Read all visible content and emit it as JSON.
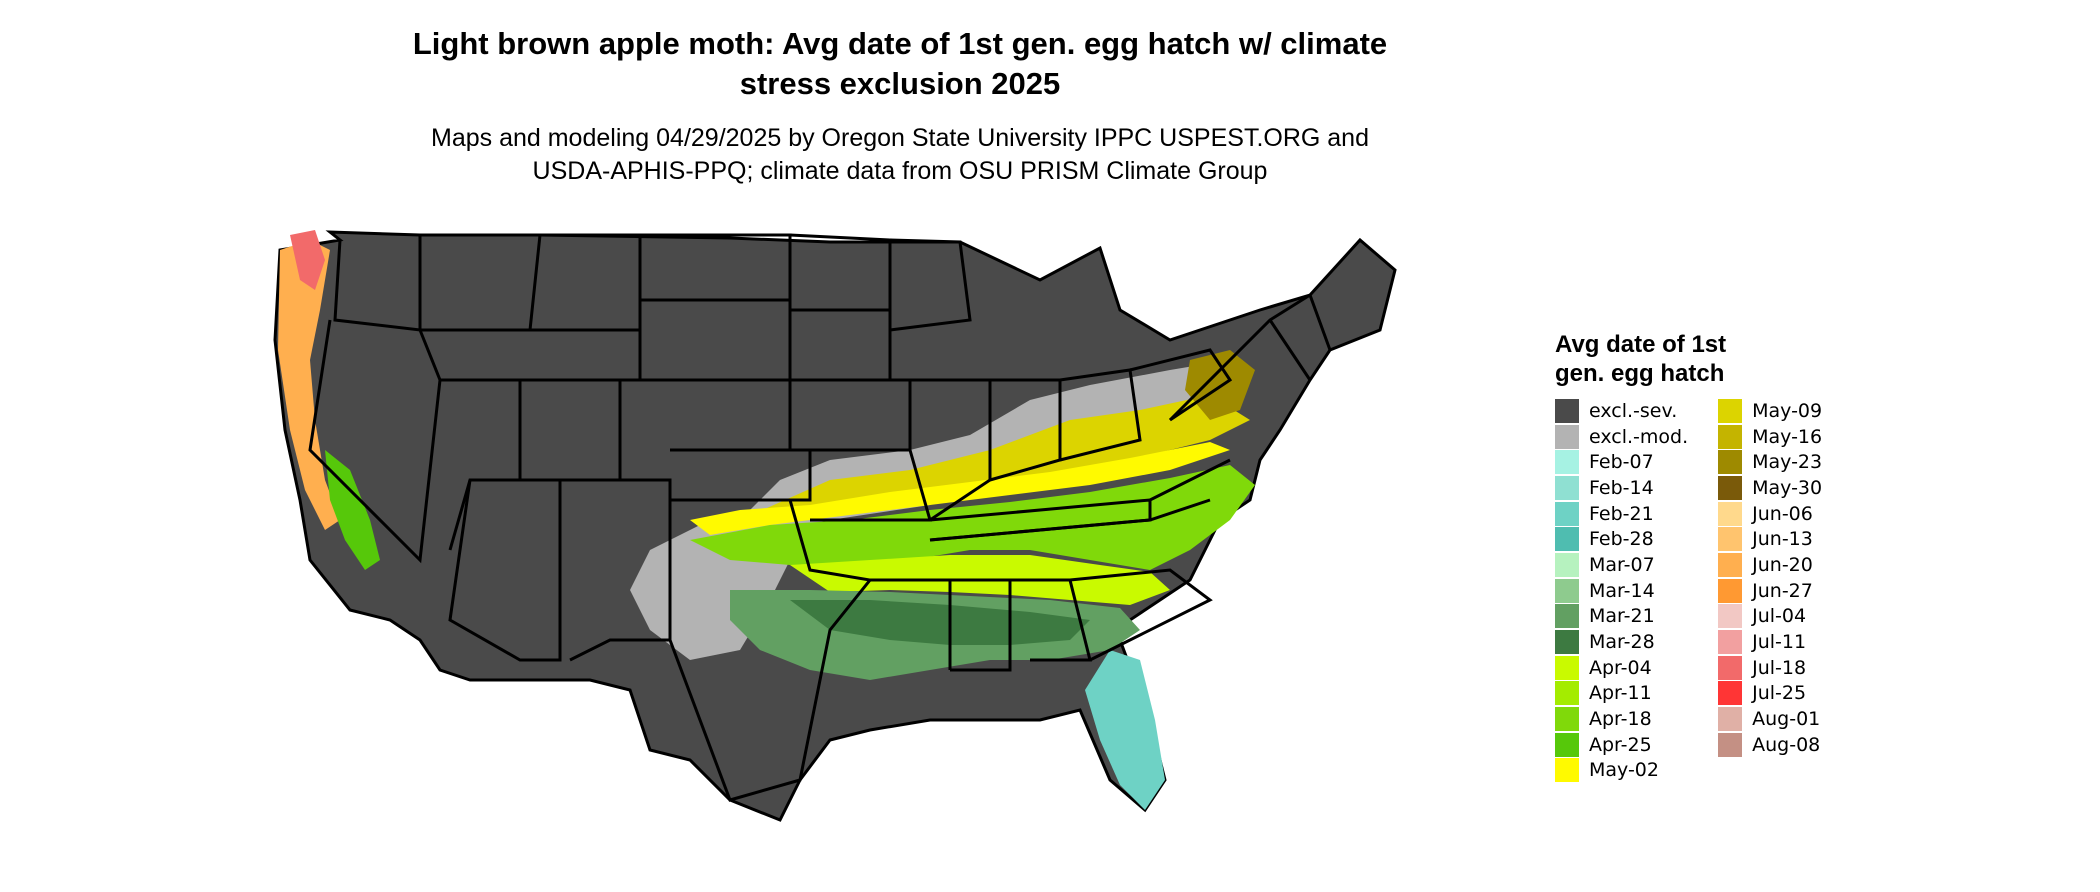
{
  "title": "Light brown apple moth: Avg date of 1st gen. egg hatch w/ climate\nstress exclusion 2025",
  "subtitle": "Maps and modeling 04/29/2025 by Oregon State University IPPC USPEST.ORG and\nUSDA-APHIS-PPQ; climate data from OSU PRISM Climate Group",
  "legend": {
    "title": "Avg date of 1st\ngen. egg hatch",
    "column1": [
      {
        "label": "excl.-sev.",
        "color": "#4a4a4a"
      },
      {
        "label": "excl.-mod.",
        "color": "#b3b3b3"
      },
      {
        "label": "Feb-07",
        "color": "#a6f2e3"
      },
      {
        "label": "Feb-14",
        "color": "#8fe0d2"
      },
      {
        "label": "Feb-21",
        "color": "#6ed2c5"
      },
      {
        "label": "Feb-28",
        "color": "#4fbdb0"
      },
      {
        "label": "Mar-07",
        "color": "#b6f2bf"
      },
      {
        "label": "Mar-14",
        "color": "#8ecb8e"
      },
      {
        "label": "Mar-21",
        "color": "#62a062"
      },
      {
        "label": "Mar-28",
        "color": "#3d7a41"
      },
      {
        "label": "Apr-04",
        "color": "#c9fa00"
      },
      {
        "label": "Apr-11",
        "color": "#a4ec00"
      },
      {
        "label": "Apr-18",
        "color": "#80d90a"
      },
      {
        "label": "Apr-25",
        "color": "#56c80a"
      },
      {
        "label": "May-02",
        "color": "#fffa00"
      }
    ],
    "column2": [
      {
        "label": "May-09",
        "color": "#dcd400"
      },
      {
        "label": "May-16",
        "color": "#c4b400"
      },
      {
        "label": "May-23",
        "color": "#9e8a00"
      },
      {
        "label": "May-30",
        "color": "#7a5a0a"
      },
      {
        "label": "Jun-06",
        "color": "#ffd98c"
      },
      {
        "label": "Jun-13",
        "color": "#ffc46e"
      },
      {
        "label": "Jun-20",
        "color": "#ffaf4f"
      },
      {
        "label": "Jun-27",
        "color": "#ff9932"
      },
      {
        "label": "Jul-04",
        "color": "#f2c8c4"
      },
      {
        "label": "Jul-11",
        "color": "#f2a0a0"
      },
      {
        "label": "Jul-18",
        "color": "#f26a6a"
      },
      {
        "label": "Jul-25",
        "color": "#ff3535"
      },
      {
        "label": "Aug-01",
        "color": "#e0b0a6"
      },
      {
        "label": "Aug-08",
        "color": "#c49084"
      }
    ]
  }
}
